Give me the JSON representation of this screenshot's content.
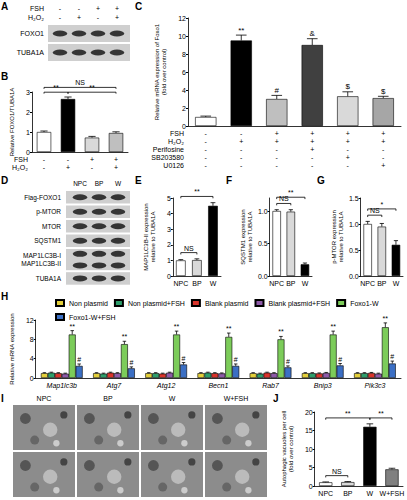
{
  "blots": [
    {
      "title": "A",
      "conditions": [
        {
          "name": "FSH",
          "values": [
            "-",
            "-",
            "+",
            "+"
          ]
        },
        {
          "name": "H₂O₂",
          "values": [
            "-",
            "+",
            "-",
            "+"
          ]
        }
      ],
      "rows": [
        "FOXO1",
        "TUBA1A"
      ]
    },
    {
      "title": "D",
      "columns": [
        "NPC",
        "BP",
        "W"
      ],
      "rows": [
        "Flag-FOXO1",
        "p-MTOR",
        "MTOR",
        "SQSTM1",
        "MAP1LC3B-I\nMAP1LC3B-II",
        "TUBA1A"
      ]
    }
  ],
  "micrographs": {
    "title": "I",
    "columns": [
      "NPC",
      "BP",
      "W",
      "W+FSH"
    ]
  },
  "chart_data": [
    {
      "type": "bar",
      "title": "B",
      "ylabel": "Relative FOXO1/TUBA1A",
      "categories": [
        null,
        null,
        null,
        null
      ],
      "conditions": [
        {
          "name": "FSH",
          "values": [
            "-",
            "-",
            "+",
            "+"
          ]
        },
        {
          "name": "H₂O₂",
          "values": [
            "-",
            "+",
            "-",
            "+"
          ]
        }
      ],
      "values": [
        1.0,
        2.65,
        0.72,
        0.95
      ],
      "errors": [
        0.05,
        0.1,
        0.06,
        0.06
      ],
      "colors": [
        "#ffffff",
        "#000000",
        "#d9d9d9",
        "#bfbfbf"
      ],
      "ylim": [
        0,
        3
      ],
      "yticks": [
        0,
        1,
        2,
        3
      ],
      "grid": false,
      "brackets": [
        {
          "bars": [
            0,
            1
          ],
          "text": "**"
        },
        {
          "bars": [
            1,
            3
          ],
          "text": "**"
        },
        {
          "bars": [
            0,
            3
          ],
          "text": "NS"
        }
      ]
    },
    {
      "type": "bar",
      "title": "C",
      "ylabel": "Relative mRNA expression of Foxo1\n(fold over control)",
      "categories": [
        null,
        null,
        null,
        null,
        null,
        null
      ],
      "conditions": [
        {
          "name": "FSH",
          "values": [
            "-",
            "-",
            "+",
            "+",
            "+",
            "+"
          ]
        },
        {
          "name": "H₂O₂",
          "values": [
            "-",
            "+",
            "+",
            "+",
            "+",
            "+"
          ]
        },
        {
          "name": "Perifosine",
          "values": [
            "-",
            "-",
            "-",
            "+",
            "-",
            "-"
          ]
        },
        {
          "name": "SB203580",
          "values": [
            "-",
            "-",
            "-",
            "-",
            "+",
            "-"
          ]
        },
        {
          "name": "U0126",
          "values": [
            "-",
            "-",
            "-",
            "-",
            "-",
            "+"
          ]
        }
      ],
      "values": [
        1.0,
        9.5,
        3.0,
        9.0,
        3.3,
        3.1
      ],
      "errors": [
        0.1,
        0.6,
        0.4,
        0.7,
        0.5,
        0.2
      ],
      "marks": [
        null,
        "**",
        "#",
        "&",
        "$",
        "$"
      ],
      "colors": [
        "#ffffff",
        "#000000",
        "#bfbfbf",
        "#404040",
        "#d9d9d9",
        "#a6a6a6"
      ],
      "ylim": [
        0,
        12
      ],
      "yticks": [
        0,
        2,
        4,
        6,
        8,
        10,
        12
      ],
      "grid": false
    },
    {
      "type": "bar",
      "title": "E",
      "ylabel": "MAP1LC3B-II expression\nrelative to TUBA1A",
      "categories": [
        "NPC",
        "BP",
        "W"
      ],
      "values": [
        1.0,
        1.02,
        4.5
      ],
      "errors": [
        0.05,
        0.08,
        0.2
      ],
      "colors": [
        "#ffffff",
        "#d9d9d9",
        "#000000"
      ],
      "ylim": [
        0,
        5
      ],
      "yticks": [
        0,
        1,
        2,
        3,
        4,
        5
      ],
      "grid": false,
      "brackets": [
        {
          "bars": [
            0,
            1
          ],
          "text": "NS"
        },
        {
          "bars": [
            0,
            2
          ],
          "text": "**"
        }
      ]
    },
    {
      "type": "bar",
      "title": "F",
      "ylabel": "SQSTM1 expression\nrelative to TUBA1A",
      "categories": [
        "NPC",
        "BP",
        "W"
      ],
      "values": [
        1.0,
        0.99,
        0.18
      ],
      "errors": [
        0.02,
        0.03,
        0.02
      ],
      "colors": [
        "#ffffff",
        "#d9d9d9",
        "#000000"
      ],
      "ylim": [
        0,
        1.2
      ],
      "yticks": [
        {
          "value": 0,
          "label": "0.0"
        },
        0.5,
        {
          "value": 1,
          "label": "1.0"
        }
      ],
      "grid": false,
      "brackets": [
        {
          "bars": [
            0,
            1
          ],
          "text": "NS"
        },
        {
          "bars": [
            0,
            2
          ],
          "text": "**"
        }
      ]
    },
    {
      "type": "bar",
      "title": "G",
      "ylabel": "p-MTOR expression\nrelative to TUBA1A",
      "categories": [
        "NPC",
        "BP",
        "W"
      ],
      "values": [
        1.0,
        0.95,
        0.6
      ],
      "errors": [
        0.05,
        0.06,
        0.08
      ],
      "colors": [
        "#ffffff",
        "#d9d9d9",
        "#000000"
      ],
      "ylim": [
        0,
        1.5
      ],
      "yticks": [
        {
          "value": 0,
          "label": "0.0"
        },
        0.5,
        {
          "value": 1,
          "label": "1.0"
        },
        1.5
      ],
      "grid": false,
      "brackets": [
        {
          "bars": [
            0,
            1
          ],
          "text": "NS"
        },
        {
          "bars": [
            0,
            2
          ],
          "text": "*"
        }
      ]
    },
    {
      "type": "bar",
      "title": "H",
      "ylabel": "Relative mRNA expression",
      "categories": [
        "Map1lc3b",
        "Atg7",
        "Atg12",
        "Becn1",
        "Rab7",
        "Bnip3",
        "Pik3c3"
      ],
      "series": [
        {
          "name": "Non plasmid",
          "color": "#e3cf3a",
          "values": [
            1.0,
            1.0,
            1.0,
            1.0,
            1.0,
            1.0,
            1.0
          ],
          "errors": [
            0.1,
            0.1,
            0.1,
            0.1,
            0.1,
            0.1,
            0.1
          ]
        },
        {
          "name": "Non plasmid+FSH",
          "color": "#2e9e6b",
          "values": [
            1.1,
            0.9,
            1.0,
            1.1,
            0.9,
            1.0,
            1.0
          ],
          "errors": [
            0.1,
            0.1,
            0.1,
            0.1,
            0.1,
            0.1,
            0.1
          ]
        },
        {
          "name": "Blank plasmid",
          "color": "#d9342b",
          "values": [
            1.0,
            1.1,
            0.9,
            1.0,
            1.1,
            0.95,
            1.05
          ],
          "errors": [
            0.1,
            0.1,
            0.1,
            0.1,
            0.1,
            0.1,
            0.1
          ]
        },
        {
          "name": "Blank plasmid+FSH",
          "color": "#8e5aa8",
          "values": [
            0.9,
            1.0,
            1.1,
            0.95,
            1.0,
            1.05,
            0.9
          ],
          "errors": [
            0.1,
            0.1,
            0.1,
            0.1,
            0.1,
            0.1,
            0.1
          ]
        },
        {
          "name": "Foxo1-W",
          "color": "#7ccc5a",
          "values": [
            9.0,
            7.0,
            9.0,
            8.5,
            8.0,
            9.0,
            10.5
          ],
          "errors": [
            0.8,
            0.6,
            0.7,
            0.8,
            0.6,
            0.7,
            0.9
          ],
          "marks": [
            "**",
            "**",
            "**",
            "**",
            "**",
            "**",
            "**"
          ]
        },
        {
          "name": "Foxo1-W+FSH",
          "color": "#3b6fc4",
          "values": [
            2.5,
            2.0,
            2.8,
            2.5,
            2.2,
            2.6,
            3.0
          ],
          "errors": [
            0.4,
            0.3,
            0.4,
            0.4,
            0.3,
            0.4,
            0.5
          ],
          "marks": [
            "#",
            "#",
            "#",
            "#",
            "#",
            "#",
            "#"
          ]
        }
      ],
      "ylim": [
        0,
        12
      ],
      "yticks": [
        0,
        4,
        8,
        12
      ],
      "grid": false,
      "legend": "top"
    },
    {
      "type": "bar",
      "title": "J",
      "ylabel": "Autophagic vacuoles per cell\n(fold over control)",
      "categories": [
        "NPC",
        "BP",
        "W",
        "W+FSH"
      ],
      "values": [
        1.0,
        1.05,
        16,
        4.5
      ],
      "errors": [
        0.1,
        0.15,
        0.8,
        0.3
      ],
      "colors": [
        "#ffffff",
        "#d9d9d9",
        "#000000",
        "#808080"
      ],
      "ylim": [
        0,
        20
      ],
      "yticks": [
        0,
        5,
        10,
        15,
        20
      ],
      "grid": false,
      "brackets": [
        {
          "bars": [
            0,
            1
          ],
          "text": "NS"
        },
        {
          "bars": [
            2,
            3
          ],
          "text": "**"
        },
        {
          "bars": [
            0,
            2
          ],
          "text": "**"
        }
      ]
    }
  ]
}
